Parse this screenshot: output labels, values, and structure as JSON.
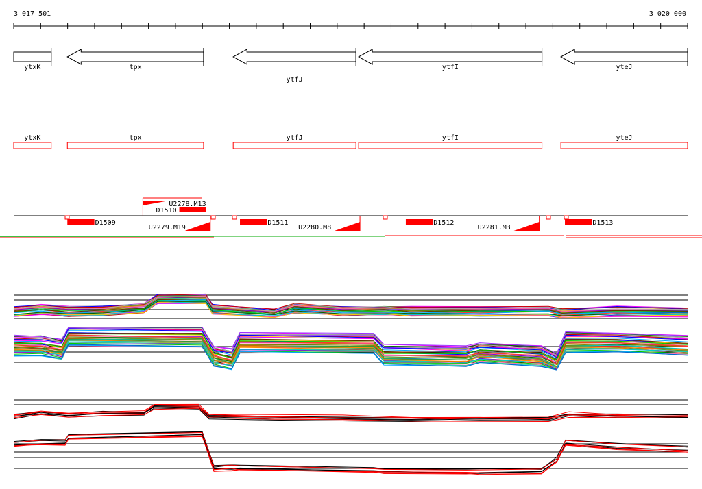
{
  "colors": {
    "red": "#ff0000",
    "green": "#00aa00",
    "black": "#000000"
  },
  "axis": {
    "start_label": "3 017 501",
    "end_label": "3 020 000",
    "start": 3017501,
    "end": 3020000
  },
  "genes": [
    {
      "name": "ytxK",
      "start": 3017501,
      "end": 3017640,
      "strand": "+"
    },
    {
      "name": "tpx",
      "start": 3017700,
      "end": 3018205,
      "strand": "-"
    },
    {
      "name": "ytfJ",
      "start": 3018315,
      "end": 3018770,
      "strand": "-"
    },
    {
      "name": "ytfI",
      "start": 3018780,
      "end": 3019460,
      "strand": "-"
    },
    {
      "name": "yteJ",
      "start": 3019530,
      "end": 3020000,
      "strand": "-"
    }
  ],
  "features": {
    "probes": [
      {
        "name": "D1509",
        "start": 3017700,
        "end": 3017800
      },
      {
        "name": "D1510",
        "start": 3018115,
        "end": 3018215
      },
      {
        "name": "D1511",
        "start": 3018340,
        "end": 3018440
      },
      {
        "name": "D1512",
        "start": 3018955,
        "end": 3019055
      },
      {
        "name": "D1513",
        "start": 3019545,
        "end": 3019645
      }
    ],
    "transcripts": [
      {
        "name": "U2278.M13",
        "start": 3017980,
        "end": 3018200
      },
      {
        "name": "U2279.M19",
        "start": 3018100,
        "end": 3018230
      },
      {
        "name": "U2280.M8",
        "start": 3018680,
        "end": 3018785
      },
      {
        "name": "U2281.M3",
        "start": 3019350,
        "end": 3019450
      }
    ]
  }
}
